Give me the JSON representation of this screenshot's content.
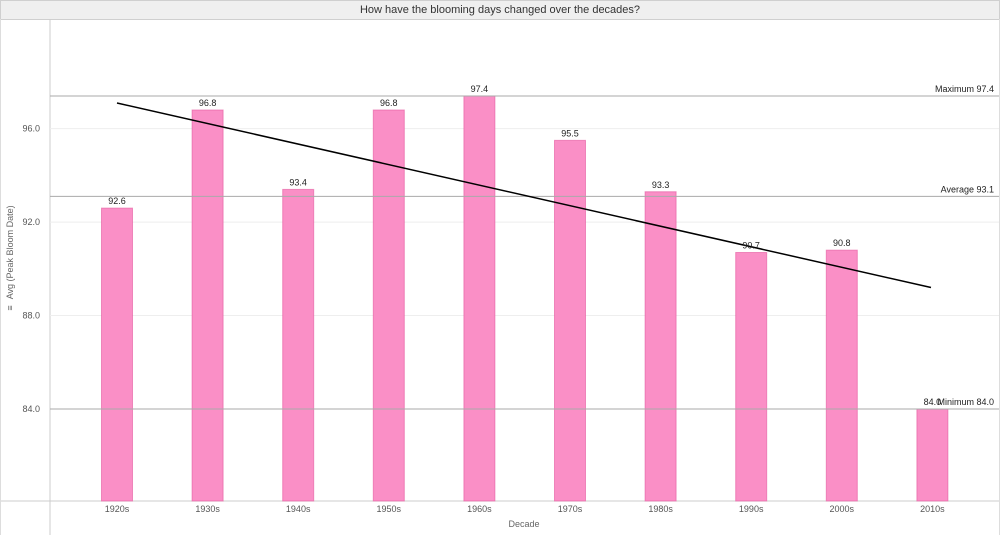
{
  "chart_data": {
    "type": "bar",
    "title": "How have the blooming days changed over the decades?",
    "xlabel": "Decade",
    "ylabel": "Avg (Peak Bloom Date)",
    "ylabel_icon": "≡",
    "categories": [
      "1920s",
      "1930s",
      "1940s",
      "1950s",
      "1960s",
      "1970s",
      "1980s",
      "1990s",
      "2000s",
      "2010s"
    ],
    "values": [
      92.6,
      96.8,
      93.4,
      96.8,
      97.4,
      95.5,
      93.3,
      90.7,
      90.8,
      84.0
    ],
    "value_labels": [
      "92.6",
      "96.8",
      "93.4",
      "96.8",
      "97.4",
      "95.5",
      "93.3",
      "90.7",
      "90.8",
      "84.0"
    ],
    "ylim": [
      80.0,
      100.0
    ],
    "yticks": [
      84.0,
      88.0,
      92.0,
      96.0
    ],
    "ytick_labels": [
      "84.0",
      "88.0",
      "92.0",
      "96.0"
    ],
    "grid": true,
    "bar_color": "#fa8fc6",
    "bar_edge_color": "#e4589f",
    "reference_lines": [
      {
        "label": "Maximum",
        "value": 97.4,
        "value_label": "97.4"
      },
      {
        "label": "Average",
        "value": 93.1,
        "value_label": "93.1"
      },
      {
        "label": "Minimum",
        "value": 84.0,
        "value_label": "84.0"
      }
    ],
    "trend_line": {
      "start": 97.1,
      "end": 89.2,
      "color": "#000000"
    }
  }
}
